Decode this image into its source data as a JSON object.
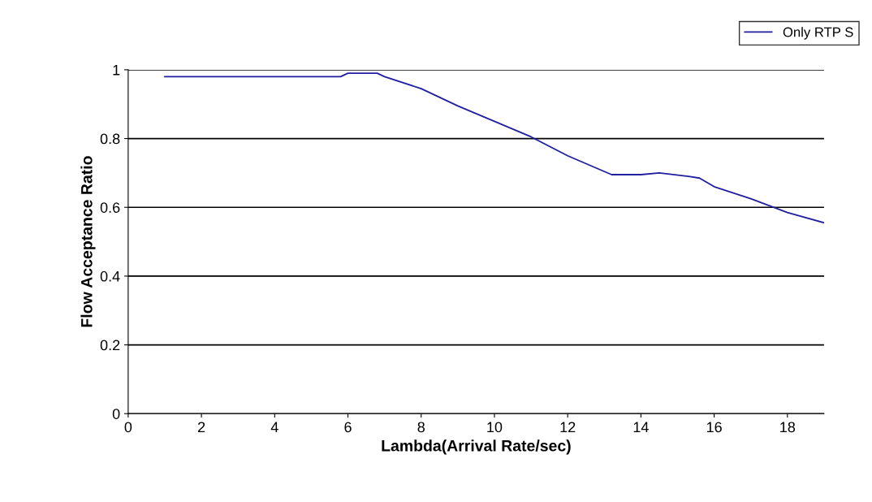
{
  "chart_data": {
    "type": "line",
    "xlabel": "Lambda(Arrival Rate/sec)",
    "ylabel": "Flow Acceptance Ratio",
    "x": [
      1,
      2,
      3,
      4,
      5,
      5.8,
      6,
      6.8,
      7,
      8,
      9,
      10,
      11,
      12,
      13.2,
      14,
      14.5,
      15.3,
      15.6,
      16,
      17,
      18,
      19
    ],
    "series": [
      {
        "name": "Only RTP S",
        "color": "#1f1fa0",
        "values": [
          0.98,
          0.98,
          0.98,
          0.98,
          0.98,
          0.98,
          0.99,
          0.99,
          0.98,
          0.945,
          0.895,
          0.85,
          0.805,
          0.75,
          0.695,
          0.695,
          0.7,
          0.69,
          0.685,
          0.66,
          0.625,
          0.585,
          0.555
        ]
      }
    ],
    "xlim": [
      0,
      19
    ],
    "xticks": [
      0,
      2,
      4,
      6,
      8,
      10,
      12,
      14,
      16,
      18
    ],
    "ylim": [
      0,
      1
    ],
    "yticks": [
      0,
      0.2,
      0.4,
      0.6,
      0.8,
      1
    ],
    "grid": "y",
    "legend": "top right",
    "marker": "none",
    "line_style": "solid"
  }
}
